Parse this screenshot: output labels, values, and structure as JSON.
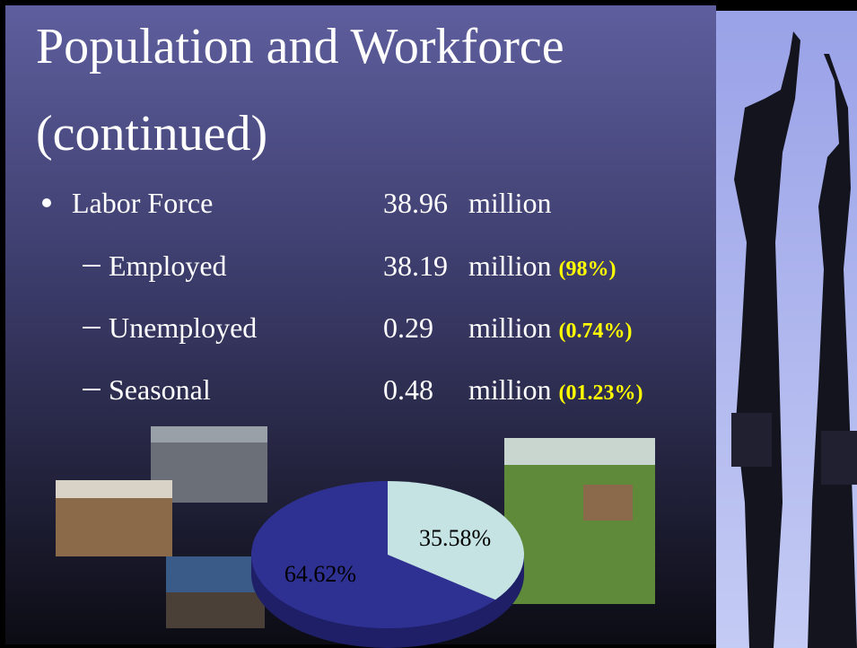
{
  "title": [
    "Population and Workforce",
    "(continued)"
  ],
  "rows": [
    {
      "label": "Labor Force",
      "value": 38.96,
      "unit": "million"
    },
    {
      "label": "Employed",
      "value": 38.19,
      "unit": "million",
      "note": "(98%)"
    },
    {
      "label": "Unemployed",
      "value": 0.29,
      "unit": "million",
      "note": "(0.74%)"
    },
    {
      "label": "Seasonal",
      "value": 0.48,
      "unit": "million",
      "note": "(01.23%)"
    }
  ],
  "chart_data": {
    "type": "pie",
    "values": [
      64.62,
      35.58
    ],
    "value_labels": [
      "64.62%",
      "35.58%"
    ],
    "colors": [
      "#2e3192",
      "#c5e3e3"
    ]
  }
}
